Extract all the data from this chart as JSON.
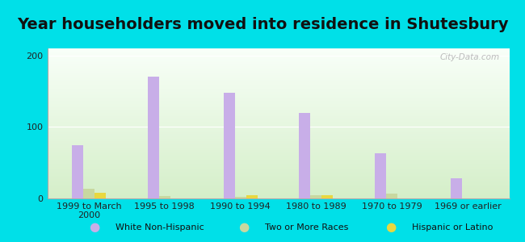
{
  "title": "Year householders moved into residence in Shutesbury",
  "categories": [
    "1999 to March\n2000",
    "1995 to 1998",
    "1990 to 1994",
    "1980 to 1989",
    "1970 to 1979",
    "1969 or earlier"
  ],
  "white_non_hispanic": [
    75,
    170,
    148,
    120,
    63,
    28
  ],
  "two_or_more_races": [
    13,
    3,
    2,
    4,
    7,
    0
  ],
  "hispanic_or_latino": [
    8,
    0,
    4,
    4,
    0,
    0
  ],
  "bar_width": 0.15,
  "colors": {
    "white_non_hispanic": "#c8aee8",
    "two_or_more_races": "#c8d8a0",
    "hispanic_or_latino": "#e8d840"
  },
  "legend_labels": [
    "White Non-Hispanic",
    "Two or More Races",
    "Hispanic or Latino"
  ],
  "ylim": [
    0,
    210
  ],
  "yticks": [
    0,
    100,
    200
  ],
  "background_outer": "#00e0e8",
  "background_inner_top": "#f8fff8",
  "background_inner_bottom": "#d4eec8",
  "watermark": "City-Data.com",
  "title_fontsize": 14,
  "tick_fontsize": 8
}
